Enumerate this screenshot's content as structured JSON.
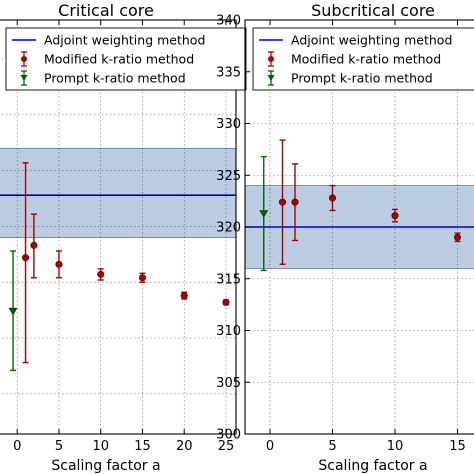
{
  "chart_data": [
    {
      "type": "scatter",
      "title": "Critical core",
      "xlabel": "Scaling factor a",
      "ylabel": "",
      "xticks": [
        0,
        5,
        10,
        15,
        20,
        25
      ],
      "xlim": [
        -2.3,
        26.2
      ],
      "ylim": [
        301.4,
        338.5
      ],
      "yticks": [],
      "grid": true,
      "legend": {
        "placement": "top",
        "entries": [
          "Adjoint weighting method",
          "Modified k-ratio method",
          "Prompt k-ratio method"
        ]
      },
      "series": [
        {
          "name": "Adjoint weighting method",
          "kind": "band",
          "color": "#0000cc",
          "fill": "#b0c4de",
          "value": 322.8,
          "lower": 319.0,
          "upper": 327.0
        },
        {
          "name": "Modified k-ratio method",
          "kind": "errorbar",
          "color": "#aa0000",
          "marker": "circle",
          "x": [
            1,
            2,
            5,
            10,
            15,
            20,
            25
          ],
          "y": [
            317.2,
            318.3,
            316.6,
            315.7,
            315.4,
            313.8,
            313.2
          ],
          "yerr_low": [
            9.4,
            2.9,
            1.2,
            0.5,
            0.4,
            0.3,
            0.2
          ],
          "yerr_high": [
            8.5,
            2.8,
            1.2,
            0.5,
            0.4,
            0.3,
            0.2
          ]
        },
        {
          "name": "Prompt k-ratio method",
          "kind": "errorbar",
          "color": "#006600",
          "marker": "triangle-down",
          "x": [
            -0.5
          ],
          "y": [
            312.4
          ],
          "yerr_low": [
            5.3
          ],
          "yerr_high": [
            5.4
          ]
        }
      ]
    },
    {
      "type": "scatter",
      "title": "Subcritical core",
      "xlabel": "Scaling factor a",
      "ylabel": "",
      "xticks": [
        0,
        5,
        10,
        15
      ],
      "xlim": [
        -2,
        17.6
      ],
      "ylim": [
        300,
        340
      ],
      "yticks": [
        300,
        305,
        310,
        315,
        320,
        325,
        330,
        335,
        340
      ],
      "grid": true,
      "legend": {
        "placement": "top",
        "entries": [
          "Adjoint weighting method",
          "Modified k-ratio method",
          "Prompt k-ratio method"
        ]
      },
      "series": [
        {
          "name": "Adjoint weighting method",
          "kind": "band",
          "color": "#0000cc",
          "fill": "#b0c4de",
          "value": 320.0,
          "lower": 316.0,
          "upper": 324.0
        },
        {
          "name": "Modified k-ratio method",
          "kind": "errorbar",
          "color": "#aa0000",
          "marker": "circle",
          "x": [
            1,
            2,
            5,
            10,
            15
          ],
          "y": [
            322.4,
            322.4,
            322.8,
            321.1,
            319.0
          ],
          "yerr_low": [
            6.0,
            3.7,
            1.2,
            0.6,
            0.4
          ],
          "yerr_high": [
            6.0,
            3.7,
            1.2,
            0.6,
            0.4
          ]
        },
        {
          "name": "Prompt k-ratio method",
          "kind": "errorbar",
          "color": "#006600",
          "marker": "triangle-down",
          "x": [
            -0.5
          ],
          "y": [
            321.3
          ],
          "yerr_low": [
            5.5
          ],
          "yerr_high": [
            5.5
          ]
        }
      ]
    }
  ]
}
